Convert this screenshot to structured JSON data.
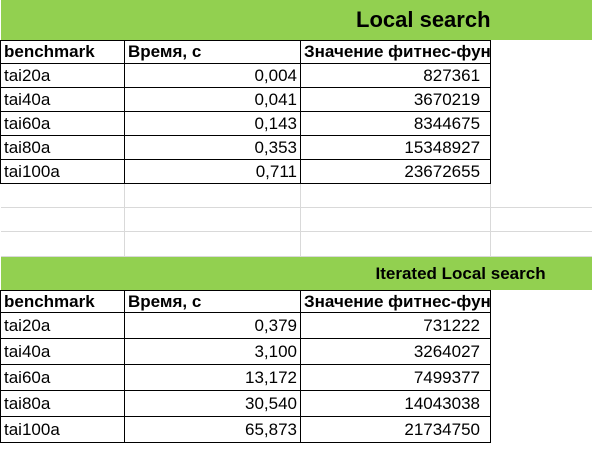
{
  "sections": [
    {
      "title": "Local search",
      "headers": [
        "benchmark",
        "Время, с",
        "Значение фитнес-функции"
      ],
      "rows": [
        {
          "benchmark": "tai20a",
          "time": "0,004",
          "fitness": "827361"
        },
        {
          "benchmark": "tai40a",
          "time": "0,041",
          "fitness": "3670219"
        },
        {
          "benchmark": "tai60a",
          "time": "0,143",
          "fitness": "8344675"
        },
        {
          "benchmark": "tai80a",
          "time": "0,353",
          "fitness": "15348927"
        },
        {
          "benchmark": "tai100a",
          "time": "0,711",
          "fitness": "23672655"
        }
      ]
    },
    {
      "title": "Iterated Local search",
      "headers": [
        "benchmark",
        "Время, с",
        "Значение фитнес-функции"
      ],
      "rows": [
        {
          "benchmark": "tai20a",
          "time": "0,379",
          "fitness": "731222"
        },
        {
          "benchmark": "tai40a",
          "time": "3,100",
          "fitness": "3264027"
        },
        {
          "benchmark": "tai60a",
          "time": "13,172",
          "fitness": "7499377"
        },
        {
          "benchmark": "tai80a",
          "time": "30,540",
          "fitness": "14043038"
        },
        {
          "benchmark": "tai100a",
          "time": "65,873",
          "fitness": "21734750"
        }
      ]
    }
  ],
  "colors": {
    "header_band": "#92d050",
    "grid_line": "#d9d9d9",
    "border": "#000000"
  }
}
